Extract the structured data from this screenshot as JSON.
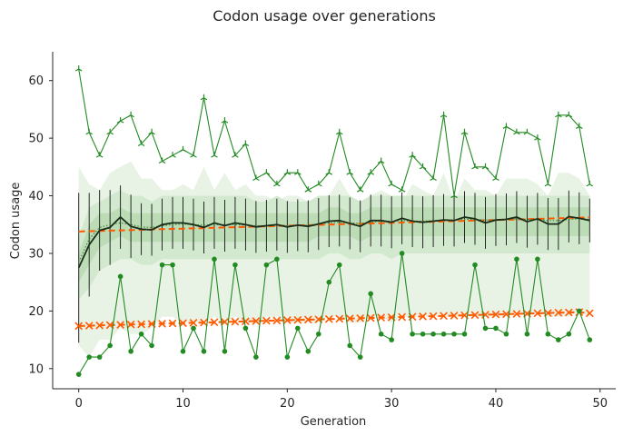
{
  "chart_data": {
    "type": "line",
    "title": "Codon usage over generations",
    "xlabel": "Generation",
    "ylabel": "Codon usage",
    "xlim": [
      -2.5,
      51.5
    ],
    "ylim": [
      6.5,
      65
    ],
    "xticks": [
      0,
      10,
      20,
      30,
      40,
      50
    ],
    "yticks": [
      10,
      20,
      30,
      40,
      50,
      60
    ],
    "grid": false,
    "legend": "none",
    "colors": {
      "max_line": "#228b22",
      "min_line": "#228b22",
      "mean_line": "#1a2e1a",
      "trend_line": "#ff5a00",
      "band_outer": "#e8f3e6",
      "band_mid": "#d3e9cf",
      "band_inner": "#bcdcb6",
      "error_bar": "#111111",
      "axis": "#262626"
    },
    "x": [
      0,
      1,
      2,
      3,
      4,
      5,
      6,
      7,
      8,
      9,
      10,
      11,
      12,
      13,
      14,
      15,
      16,
      17,
      18,
      19,
      20,
      21,
      22,
      23,
      24,
      25,
      26,
      27,
      28,
      29,
      30,
      31,
      32,
      33,
      34,
      35,
      36,
      37,
      38,
      39,
      40,
      41,
      42,
      43,
      44,
      45,
      46,
      47,
      48,
      49
    ],
    "series": [
      {
        "key": "max",
        "marker": "tri",
        "values": [
          62,
          51,
          47,
          51,
          53,
          54,
          49,
          51,
          46,
          47,
          48,
          47,
          57,
          47,
          53,
          47,
          49,
          43,
          44,
          42,
          44,
          44,
          41,
          42,
          44,
          51,
          44,
          41,
          44,
          46,
          42,
          41,
          47,
          45,
          43,
          54,
          40,
          51,
          45,
          45,
          43,
          52,
          51,
          51,
          50,
          42,
          54,
          54,
          52,
          42
        ]
      },
      {
        "key": "min",
        "marker": "dot",
        "values": [
          9,
          12,
          12,
          14,
          26,
          13,
          16,
          14,
          28,
          28,
          13,
          17,
          13,
          29,
          13,
          28,
          17,
          12,
          28,
          29,
          12,
          17,
          13,
          16,
          25,
          28,
          14,
          12,
          23,
          16,
          15,
          30,
          16,
          16,
          16,
          16,
          16,
          16,
          28,
          17,
          17,
          16,
          29,
          16,
          29,
          16,
          15,
          16,
          20,
          15
        ]
      },
      {
        "key": "mean",
        "marker": "none",
        "values": [
          27.5,
          31.5,
          34,
          34.5,
          36.3,
          34.7,
          34.2,
          34.1,
          35,
          35.3,
          35.3,
          35,
          34.5,
          35.3,
          34.8,
          35.3,
          35,
          34.6,
          34.8,
          35,
          34.6,
          34.9,
          34.7,
          35.1,
          35.6,
          35.7,
          35.2,
          34.7,
          35.7,
          35.7,
          35.4,
          36.1,
          35.6,
          35.4,
          35.6,
          35.8,
          35.7,
          36.3,
          36,
          35.3,
          35.8,
          35.9,
          36.3,
          35.5,
          36,
          35.1,
          35.1,
          36.4,
          36.1,
          35.7
        ]
      },
      {
        "key": "mean_smoothed",
        "marker": "none",
        "values": [
          28.5,
          32.5,
          34.5,
          35,
          35.3,
          35,
          34.6,
          34.5,
          34.8,
          35,
          35.1,
          35,
          34.9,
          35,
          35,
          35,
          34.9,
          34.8,
          34.8,
          34.9,
          34.8,
          34.8,
          34.9,
          35.1,
          35.3,
          35.4,
          35.3,
          35.2,
          35.4,
          35.6,
          35.6,
          35.7,
          35.6,
          35.6,
          35.7,
          35.8,
          35.8,
          35.9,
          35.9,
          35.8,
          35.8,
          35.9,
          36,
          35.9,
          35.9,
          35.7,
          35.7,
          35.9,
          36,
          35.9
        ]
      },
      {
        "key": "trend_high",
        "marker": "none",
        "values": [
          33.8,
          33.85,
          33.9,
          33.95,
          34,
          34.05,
          34.1,
          34.15,
          34.2,
          34.25,
          34.3,
          34.35,
          34.4,
          34.45,
          34.5,
          34.55,
          34.6,
          34.65,
          34.7,
          34.75,
          34.8,
          34.85,
          34.9,
          34.95,
          35,
          35.05,
          35.1,
          35.15,
          35.2,
          35.25,
          35.3,
          35.35,
          35.4,
          35.45,
          35.5,
          35.55,
          35.6,
          35.65,
          35.7,
          35.75,
          35.8,
          35.85,
          35.9,
          35.95,
          36,
          36.05,
          36.1,
          36.15,
          36.2,
          36.25
        ]
      },
      {
        "key": "trend_low",
        "marker": "cross",
        "values": [
          17.4,
          17.45,
          17.5,
          17.55,
          17.6,
          17.65,
          17.7,
          17.75,
          17.8,
          17.85,
          17.9,
          17.95,
          18,
          18.05,
          18.1,
          18.15,
          18.2,
          18.25,
          18.3,
          18.35,
          18.4,
          18.45,
          18.5,
          18.55,
          18.6,
          18.65,
          18.7,
          18.75,
          18.8,
          18.85,
          18.9,
          18.95,
          19,
          19.05,
          19.1,
          19.15,
          19.2,
          19.25,
          19.3,
          19.35,
          19.4,
          19.45,
          19.5,
          19.55,
          19.6,
          19.65,
          19.7,
          19.75,
          19.8,
          19.6
        ]
      }
    ],
    "error_bars": {
      "center": "mean",
      "half_width": [
        13,
        9,
        7,
        6.5,
        5.5,
        5.5,
        4.5,
        4.5,
        4.5,
        4.5,
        4.5,
        4.5,
        4.5,
        4.5,
        4.5,
        4.5,
        4.5,
        4.5,
        4.5,
        4.5,
        4.5,
        4.5,
        4.5,
        4.5,
        4.5,
        4.5,
        4.5,
        4.5,
        4.5,
        4.5,
        4.5,
        4.5,
        4.5,
        4.5,
        4.5,
        4.5,
        4.5,
        4.5,
        4.5,
        4.5,
        4.5,
        4.5,
        4.5,
        4.5,
        4.5,
        4.5,
        4.5,
        4.5,
        4.5,
        3.8
      ]
    },
    "bands": [
      {
        "key": "outer",
        "lower": [
          14,
          12,
          15,
          15,
          17,
          16,
          16,
          17,
          19,
          19,
          18,
          18,
          18,
          19,
          18,
          19,
          18,
          18,
          19,
          19,
          18,
          18,
          18,
          18,
          19,
          19,
          18,
          18,
          19,
          19,
          18,
          19,
          19,
          19,
          19,
          19,
          19,
          19,
          19,
          19,
          19,
          19,
          20,
          19,
          20,
          19,
          19,
          19,
          20,
          19
        ],
        "upper": [
          45,
          42,
          41,
          44,
          45,
          46,
          43,
          43,
          41,
          41,
          42,
          41,
          45,
          41,
          44,
          41,
          42,
          40,
          40,
          39,
          40,
          40,
          39,
          39,
          40,
          43,
          40,
          39,
          40,
          41,
          40,
          39,
          42,
          41,
          40,
          44,
          39,
          43,
          41,
          41,
          40,
          43,
          43,
          43,
          42,
          40,
          44,
          44,
          43,
          40
        ]
      },
      {
        "key": "mid",
        "lower": [
          22,
          24,
          27,
          28,
          29,
          29,
          28,
          28,
          29,
          29,
          29,
          29,
          29,
          29,
          29,
          29,
          29,
          29,
          29,
          29,
          29,
          29,
          29,
          29,
          30,
          30,
          29,
          29,
          30,
          30,
          29,
          30,
          30,
          30,
          30,
          30,
          30,
          30,
          30,
          30,
          30,
          30,
          30,
          30,
          30,
          30,
          30,
          30,
          30,
          30
        ],
        "upper": [
          33,
          38,
          39,
          40,
          41,
          40,
          40,
          39,
          40,
          40,
          40,
          40,
          40,
          40,
          40,
          40,
          40,
          39,
          39,
          40,
          39,
          39,
          39,
          40,
          40,
          40,
          40,
          39,
          40,
          40,
          40,
          40,
          40,
          40,
          40,
          40,
          40,
          40,
          40,
          40,
          40,
          40,
          40,
          40,
          40,
          40,
          40,
          40,
          40,
          40
        ]
      },
      {
        "key": "inner",
        "lower": [
          25,
          28,
          31,
          32,
          33,
          32,
          32,
          32,
          32,
          32,
          32,
          32,
          32,
          32,
          32,
          32,
          32,
          32,
          32,
          32,
          32,
          32,
          32,
          33,
          33,
          33,
          33,
          32,
          33,
          33,
          33,
          33,
          33,
          33,
          33,
          33,
          33,
          33,
          33,
          33,
          33,
          33,
          33,
          33,
          33,
          33,
          33,
          33,
          33,
          33
        ],
        "upper": [
          30,
          35,
          37,
          37,
          38,
          37,
          37,
          37,
          37,
          37,
          37,
          37,
          37,
          37,
          37,
          37,
          37,
          37,
          37,
          37,
          37,
          37,
          37,
          37,
          38,
          38,
          37,
          37,
          38,
          38,
          38,
          38,
          38,
          38,
          38,
          38,
          38,
          38,
          38,
          38,
          38,
          38,
          38,
          38,
          38,
          38,
          38,
          38,
          38,
          38
        ]
      }
    ]
  }
}
